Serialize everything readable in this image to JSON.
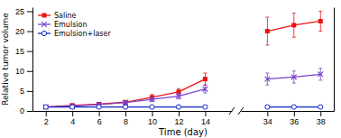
{
  "chart_data": [
    {
      "type": "line",
      "xlabel": "Time (day)",
      "ylabel": "Relative tumor volume",
      "xlim": [
        1,
        16
      ],
      "xticks": [
        2,
        4,
        6,
        8,
        10,
        12,
        14
      ],
      "ylim": [
        0,
        26
      ],
      "yticks": [
        0,
        5,
        10,
        15,
        20,
        25
      ],
      "legend": "upper left",
      "series": [
        {
          "name": "Saline",
          "color": "#ee1111",
          "marker": "square",
          "x": [
            2,
            4,
            6,
            8,
            10,
            12,
            14
          ],
          "values": [
            1.0,
            1.4,
            1.7,
            2.2,
            3.4,
            4.8,
            8.0
          ],
          "errors": [
            0.15,
            0.25,
            0.3,
            0.4,
            0.7,
            0.8,
            1.5
          ]
        },
        {
          "name": "Emulsion",
          "color": "#7744cc",
          "marker": "x",
          "x": [
            2,
            4,
            6,
            8,
            10,
            12,
            14
          ],
          "values": [
            1.0,
            1.2,
            1.6,
            2.1,
            2.9,
            3.7,
            5.5
          ],
          "errors": [
            0.15,
            0.25,
            0.3,
            0.4,
            0.5,
            0.7,
            1.0
          ]
        },
        {
          "name": "Emulsion+laser",
          "color": "#1122cc",
          "marker": "circle-open",
          "x": [
            2,
            4,
            6,
            8,
            10,
            12,
            14
          ],
          "values": [
            1.0,
            1.0,
            1.0,
            1.0,
            1.0,
            1.0,
            1.0
          ],
          "errors": [
            0.08,
            0.08,
            0.08,
            0.08,
            0.08,
            0.08,
            0.08
          ]
        }
      ]
    },
    {
      "type": "line",
      "xlim": [
        32,
        39
      ],
      "xticks": [
        34,
        36,
        38
      ],
      "ylim": [
        0,
        26
      ],
      "tick_labels": "x",
      "series": [
        {
          "color": "#ee1111",
          "marker": "square",
          "x": [
            34,
            36,
            38
          ],
          "values": [
            20.0,
            21.5,
            22.5
          ],
          "errors": [
            3.5,
            3.0,
            2.5
          ]
        },
        {
          "color": "#7744cc",
          "marker": "x",
          "x": [
            34,
            36,
            38
          ],
          "values": [
            8.0,
            8.5,
            9.2
          ],
          "errors": [
            1.5,
            1.5,
            1.5
          ]
        },
        {
          "color": "#1122cc",
          "marker": "circle-open",
          "x": [
            34,
            36,
            38
          ],
          "values": [
            1.0,
            1.0,
            1.0
          ],
          "errors": [
            0.08,
            0.08,
            0.08
          ]
        }
      ]
    }
  ]
}
